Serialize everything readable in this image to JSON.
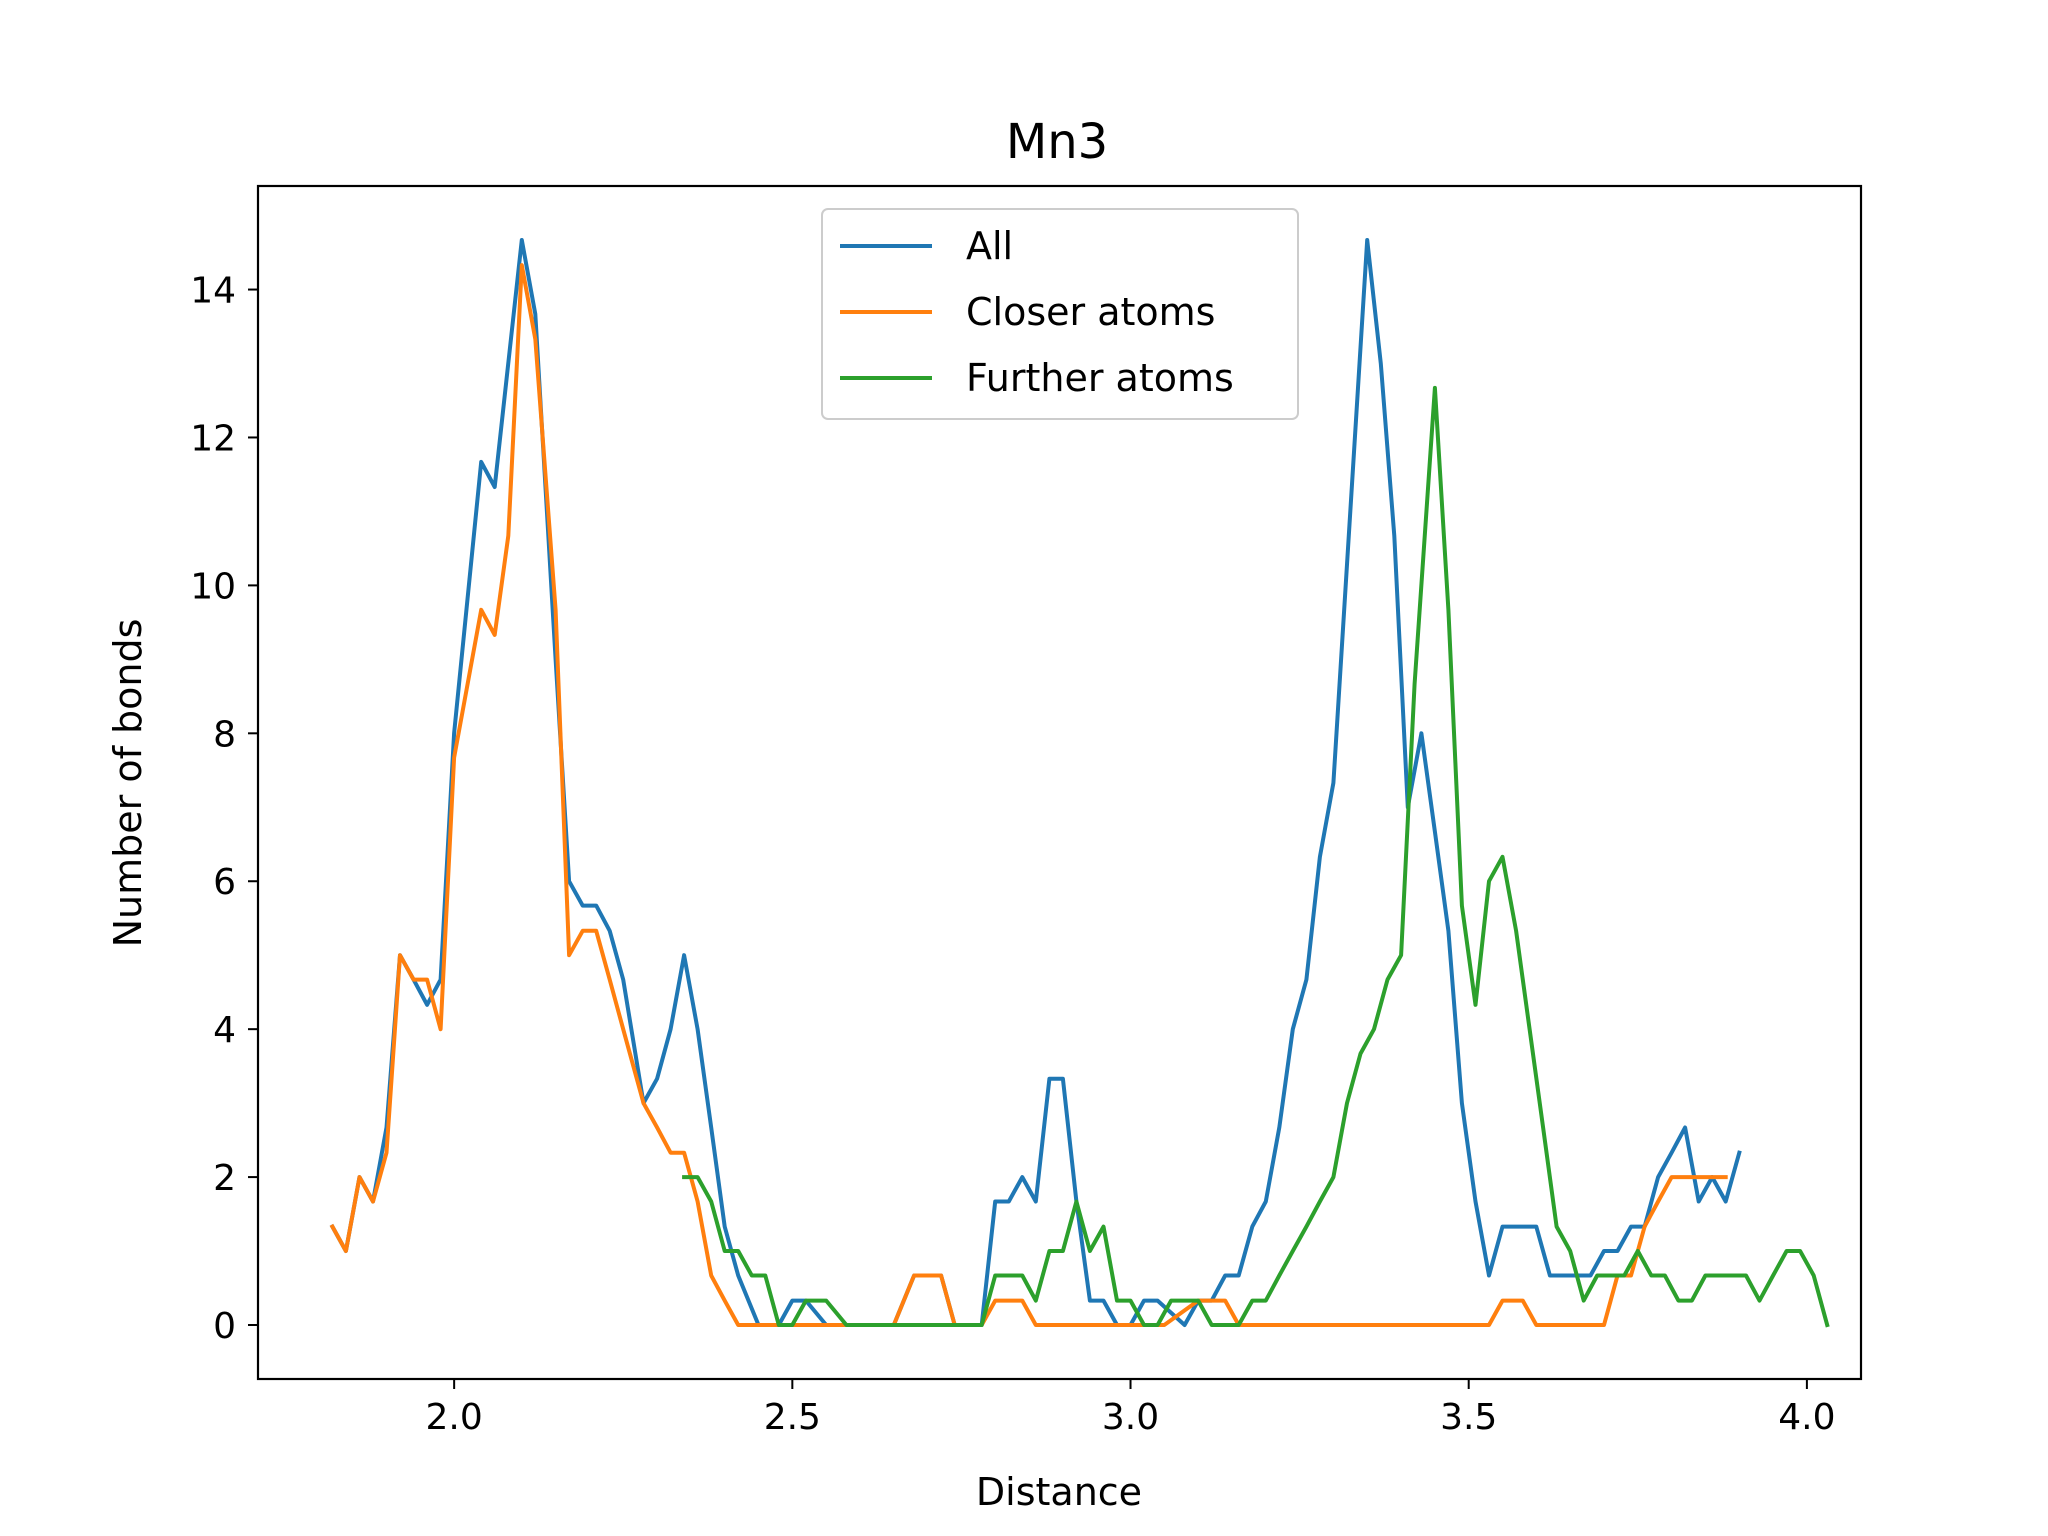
{
  "chart_data": {
    "type": "line",
    "title": "Mn3",
    "xlabel": "Distance",
    "ylabel": "Number of bonds",
    "xlim": [
      1.71,
      4.08
    ],
    "ylim": [
      -0.73,
      15.4
    ],
    "xticks": [
      2.0,
      2.5,
      3.0,
      3.5,
      4.0
    ],
    "yticks": [
      0,
      2,
      4,
      6,
      8,
      10,
      12,
      14
    ],
    "grid": false,
    "legend": "top-center",
    "series": [
      {
        "name": "All",
        "color": "#1f77b4",
        "points": [
          [
            1.82,
            1.33
          ],
          [
            1.84,
            1
          ],
          [
            1.86,
            2
          ],
          [
            1.88,
            1.67
          ],
          [
            1.9,
            2.67
          ],
          [
            1.92,
            5
          ],
          [
            1.94,
            4.67
          ],
          [
            1.96,
            4.33
          ],
          [
            1.98,
            4.67
          ],
          [
            2.0,
            8
          ],
          [
            2.04,
            11.67
          ],
          [
            2.06,
            11.33
          ],
          [
            2.1,
            14.67
          ],
          [
            2.12,
            13.67
          ],
          [
            2.15,
            9
          ],
          [
            2.17,
            6
          ],
          [
            2.19,
            5.67
          ],
          [
            2.21,
            5.67
          ],
          [
            2.23,
            5.33
          ],
          [
            2.25,
            4.67
          ],
          [
            2.28,
            3
          ],
          [
            2.3,
            3.33
          ],
          [
            2.32,
            4
          ],
          [
            2.34,
            5
          ],
          [
            2.36,
            4
          ],
          [
            2.38,
            2.67
          ],
          [
            2.4,
            1.33
          ],
          [
            2.42,
            0.67
          ],
          [
            2.45,
            0
          ],
          [
            2.48,
            0
          ],
          [
            2.5,
            0.33
          ],
          [
            2.52,
            0.33
          ],
          [
            2.55,
            0
          ],
          [
            2.6,
            0
          ],
          [
            2.65,
            0
          ],
          [
            2.68,
            0.67
          ],
          [
            2.72,
            0.67
          ],
          [
            2.74,
            0
          ],
          [
            2.78,
            0
          ],
          [
            2.8,
            1.67
          ],
          [
            2.82,
            1.67
          ],
          [
            2.84,
            2
          ],
          [
            2.86,
            1.67
          ],
          [
            2.88,
            3.33
          ],
          [
            2.9,
            3.33
          ],
          [
            2.92,
            1.67
          ],
          [
            2.94,
            0.33
          ],
          [
            2.96,
            0.33
          ],
          [
            2.98,
            0
          ],
          [
            3.0,
            0
          ],
          [
            3.02,
            0.33
          ],
          [
            3.04,
            0.33
          ],
          [
            3.08,
            0
          ],
          [
            3.1,
            0.33
          ],
          [
            3.12,
            0.33
          ],
          [
            3.14,
            0.67
          ],
          [
            3.16,
            0.67
          ],
          [
            3.18,
            1.33
          ],
          [
            3.2,
            1.67
          ],
          [
            3.22,
            2.67
          ],
          [
            3.24,
            4
          ],
          [
            3.26,
            4.67
          ],
          [
            3.28,
            6.33
          ],
          [
            3.3,
            7.33
          ],
          [
            3.35,
            14.67
          ],
          [
            3.37,
            13
          ],
          [
            3.39,
            10.67
          ],
          [
            3.41,
            7
          ],
          [
            3.43,
            8
          ],
          [
            3.45,
            6.67
          ],
          [
            3.47,
            5.33
          ],
          [
            3.49,
            3
          ],
          [
            3.51,
            1.67
          ],
          [
            3.53,
            0.67
          ],
          [
            3.55,
            1.33
          ],
          [
            3.57,
            1.33
          ],
          [
            3.6,
            1.33
          ],
          [
            3.62,
            0.67
          ],
          [
            3.65,
            0.67
          ],
          [
            3.68,
            0.67
          ],
          [
            3.7,
            1
          ],
          [
            3.72,
            1
          ],
          [
            3.74,
            1.33
          ],
          [
            3.76,
            1.33
          ],
          [
            3.78,
            2
          ],
          [
            3.8,
            2.33
          ],
          [
            3.82,
            2.67
          ],
          [
            3.84,
            1.67
          ],
          [
            3.86,
            2
          ],
          [
            3.88,
            1.67
          ],
          [
            3.9,
            2.33
          ]
        ]
      },
      {
        "name": "Closer atoms",
        "color": "#ff7f0e",
        "points": [
          [
            1.82,
            1.33
          ],
          [
            1.84,
            1
          ],
          [
            1.86,
            2
          ],
          [
            1.88,
            1.67
          ],
          [
            1.9,
            2.33
          ],
          [
            1.92,
            5
          ],
          [
            1.94,
            4.67
          ],
          [
            1.96,
            4.67
          ],
          [
            1.98,
            4
          ],
          [
            2.0,
            7.67
          ],
          [
            2.04,
            9.67
          ],
          [
            2.06,
            9.33
          ],
          [
            2.08,
            10.67
          ],
          [
            2.1,
            14.33
          ],
          [
            2.12,
            13.33
          ],
          [
            2.15,
            9.67
          ],
          [
            2.17,
            5
          ],
          [
            2.19,
            5.33
          ],
          [
            2.21,
            5.33
          ],
          [
            2.23,
            4.67
          ],
          [
            2.25,
            4
          ],
          [
            2.28,
            3
          ],
          [
            2.3,
            2.67
          ],
          [
            2.32,
            2.33
          ],
          [
            2.34,
            2.33
          ],
          [
            2.36,
            1.67
          ],
          [
            2.38,
            0.67
          ],
          [
            2.4,
            0.33
          ],
          [
            2.42,
            0
          ],
          [
            2.45,
            0
          ],
          [
            2.5,
            0
          ],
          [
            2.55,
            0
          ],
          [
            2.6,
            0
          ],
          [
            2.65,
            0
          ],
          [
            2.68,
            0.67
          ],
          [
            2.72,
            0.67
          ],
          [
            2.74,
            0
          ],
          [
            2.78,
            0
          ],
          [
            2.8,
            0.33
          ],
          [
            2.84,
            0.33
          ],
          [
            2.86,
            0
          ],
          [
            2.9,
            0
          ],
          [
            3.0,
            0
          ],
          [
            3.05,
            0
          ],
          [
            3.1,
            0.33
          ],
          [
            3.14,
            0.33
          ],
          [
            3.16,
            0
          ],
          [
            3.2,
            0
          ],
          [
            3.3,
            0
          ],
          [
            3.4,
            0
          ],
          [
            3.5,
            0
          ],
          [
            3.53,
            0
          ],
          [
            3.55,
            0.33
          ],
          [
            3.58,
            0.33
          ],
          [
            3.6,
            0
          ],
          [
            3.65,
            0
          ],
          [
            3.68,
            0
          ],
          [
            3.7,
            0
          ],
          [
            3.72,
            0.67
          ],
          [
            3.74,
            0.67
          ],
          [
            3.76,
            1.33
          ],
          [
            3.78,
            1.67
          ],
          [
            3.8,
            2
          ],
          [
            3.84,
            2
          ],
          [
            3.88,
            2
          ]
        ]
      },
      {
        "name": "Further atoms",
        "color": "#2ca02c",
        "points": [
          [
            2.34,
            2
          ],
          [
            2.36,
            2
          ],
          [
            2.38,
            1.67
          ],
          [
            2.4,
            1
          ],
          [
            2.42,
            1
          ],
          [
            2.44,
            0.67
          ],
          [
            2.46,
            0.67
          ],
          [
            2.48,
            0
          ],
          [
            2.5,
            0
          ],
          [
            2.52,
            0.33
          ],
          [
            2.55,
            0.33
          ],
          [
            2.58,
            0
          ],
          [
            2.6,
            0
          ],
          [
            2.7,
            0
          ],
          [
            2.75,
            0
          ],
          [
            2.78,
            0
          ],
          [
            2.8,
            0.67
          ],
          [
            2.84,
            0.67
          ],
          [
            2.86,
            0.33
          ],
          [
            2.88,
            1
          ],
          [
            2.9,
            1
          ],
          [
            2.92,
            1.67
          ],
          [
            2.94,
            1
          ],
          [
            2.96,
            1.33
          ],
          [
            2.98,
            0.33
          ],
          [
            3.0,
            0.33
          ],
          [
            3.02,
            0
          ],
          [
            3.04,
            0
          ],
          [
            3.06,
            0.33
          ],
          [
            3.1,
            0.33
          ],
          [
            3.12,
            0
          ],
          [
            3.16,
            0
          ],
          [
            3.18,
            0.33
          ],
          [
            3.2,
            0.33
          ],
          [
            3.22,
            0.67
          ],
          [
            3.24,
            1
          ],
          [
            3.26,
            1.33
          ],
          [
            3.28,
            1.67
          ],
          [
            3.3,
            2
          ],
          [
            3.32,
            3
          ],
          [
            3.34,
            3.67
          ],
          [
            3.36,
            4
          ],
          [
            3.38,
            4.67
          ],
          [
            3.4,
            5
          ],
          [
            3.42,
            8.67
          ],
          [
            3.45,
            12.67
          ],
          [
            3.47,
            9.67
          ],
          [
            3.49,
            5.67
          ],
          [
            3.51,
            4.33
          ],
          [
            3.53,
            6
          ],
          [
            3.55,
            6.33
          ],
          [
            3.57,
            5.33
          ],
          [
            3.59,
            4
          ],
          [
            3.61,
            2.67
          ],
          [
            3.63,
            1.33
          ],
          [
            3.65,
            1
          ],
          [
            3.67,
            0.33
          ],
          [
            3.69,
            0.67
          ],
          [
            3.71,
            0.67
          ],
          [
            3.73,
            0.67
          ],
          [
            3.75,
            1
          ],
          [
            3.77,
            0.67
          ],
          [
            3.79,
            0.67
          ],
          [
            3.81,
            0.33
          ],
          [
            3.83,
            0.33
          ],
          [
            3.85,
            0.67
          ],
          [
            3.87,
            0.67
          ],
          [
            3.89,
            0.67
          ],
          [
            3.91,
            0.67
          ],
          [
            3.93,
            0.33
          ],
          [
            3.95,
            0.67
          ],
          [
            3.97,
            1
          ],
          [
            3.99,
            1
          ],
          [
            4.01,
            0.67
          ],
          [
            4.03,
            0
          ]
        ]
      }
    ]
  }
}
